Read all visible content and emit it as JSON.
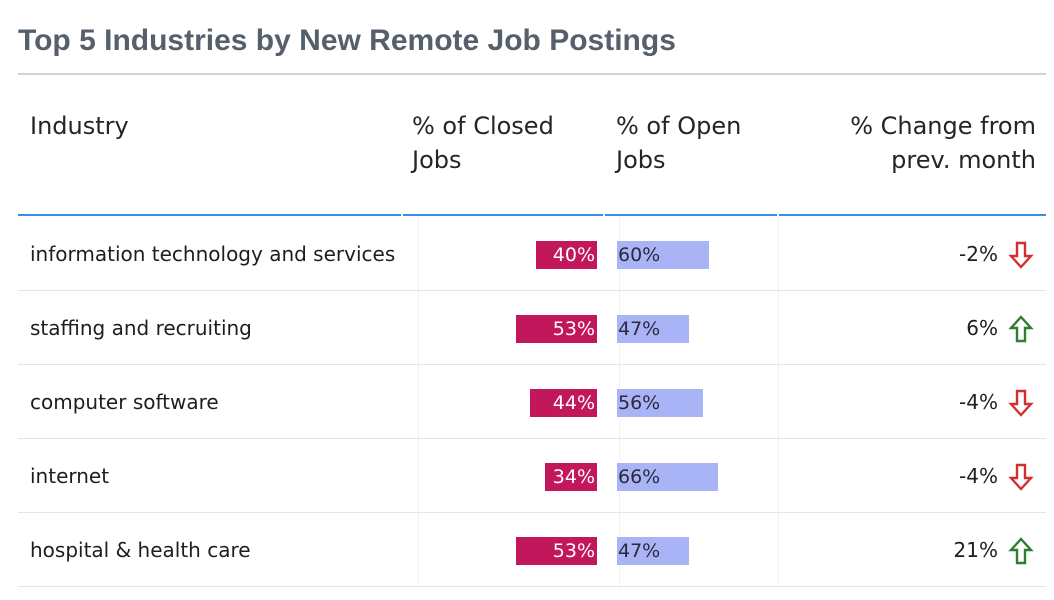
{
  "title": "Top 5 Industries by New Remote Job Postings",
  "columns": {
    "industry": "Industry",
    "closed_line1": "% of Closed",
    "closed_line2": "Jobs",
    "open_line1": "% of Open",
    "open_line2": "Jobs",
    "change_line1": "% Change from",
    "change_line2": "prev. month"
  },
  "colors": {
    "closed_bar": "#c2185b",
    "open_bar": "#a9b4f7",
    "down_arrow": "#d32f2f",
    "up_arrow": "#2e7d32"
  },
  "chart_data": {
    "type": "table",
    "title": "Top 5 Industries by New Remote Job Postings",
    "columns": [
      "Industry",
      "% of Closed Jobs",
      "% of Open Jobs",
      "% Change from prev. month"
    ],
    "rows": [
      {
        "industry": "information technology and services",
        "closed": 40,
        "closed_label": "40%",
        "open": 60,
        "open_label": "60%",
        "change": -2,
        "change_label": "-2%",
        "trend": "down",
        "trend_icon": "arrow-down-icon"
      },
      {
        "industry": "staffing and recruiting",
        "closed": 53,
        "closed_label": "53%",
        "open": 47,
        "open_label": "47%",
        "change": 6,
        "change_label": "6%",
        "trend": "up",
        "trend_icon": "arrow-up-icon"
      },
      {
        "industry": "computer software",
        "closed": 44,
        "closed_label": "44%",
        "open": 56,
        "open_label": "56%",
        "change": -4,
        "change_label": "-4%",
        "trend": "down",
        "trend_icon": "arrow-down-icon"
      },
      {
        "industry": "internet",
        "closed": 34,
        "closed_label": "34%",
        "open": 66,
        "open_label": "66%",
        "change": -4,
        "change_label": "-4%",
        "trend": "down",
        "trend_icon": "arrow-down-icon"
      },
      {
        "industry": "hospital & health care",
        "closed": 53,
        "closed_label": "53%",
        "open": 47,
        "open_label": "47%",
        "change": 21,
        "change_label": "21%",
        "trend": "up",
        "trend_icon": "arrow-up-icon"
      }
    ]
  }
}
